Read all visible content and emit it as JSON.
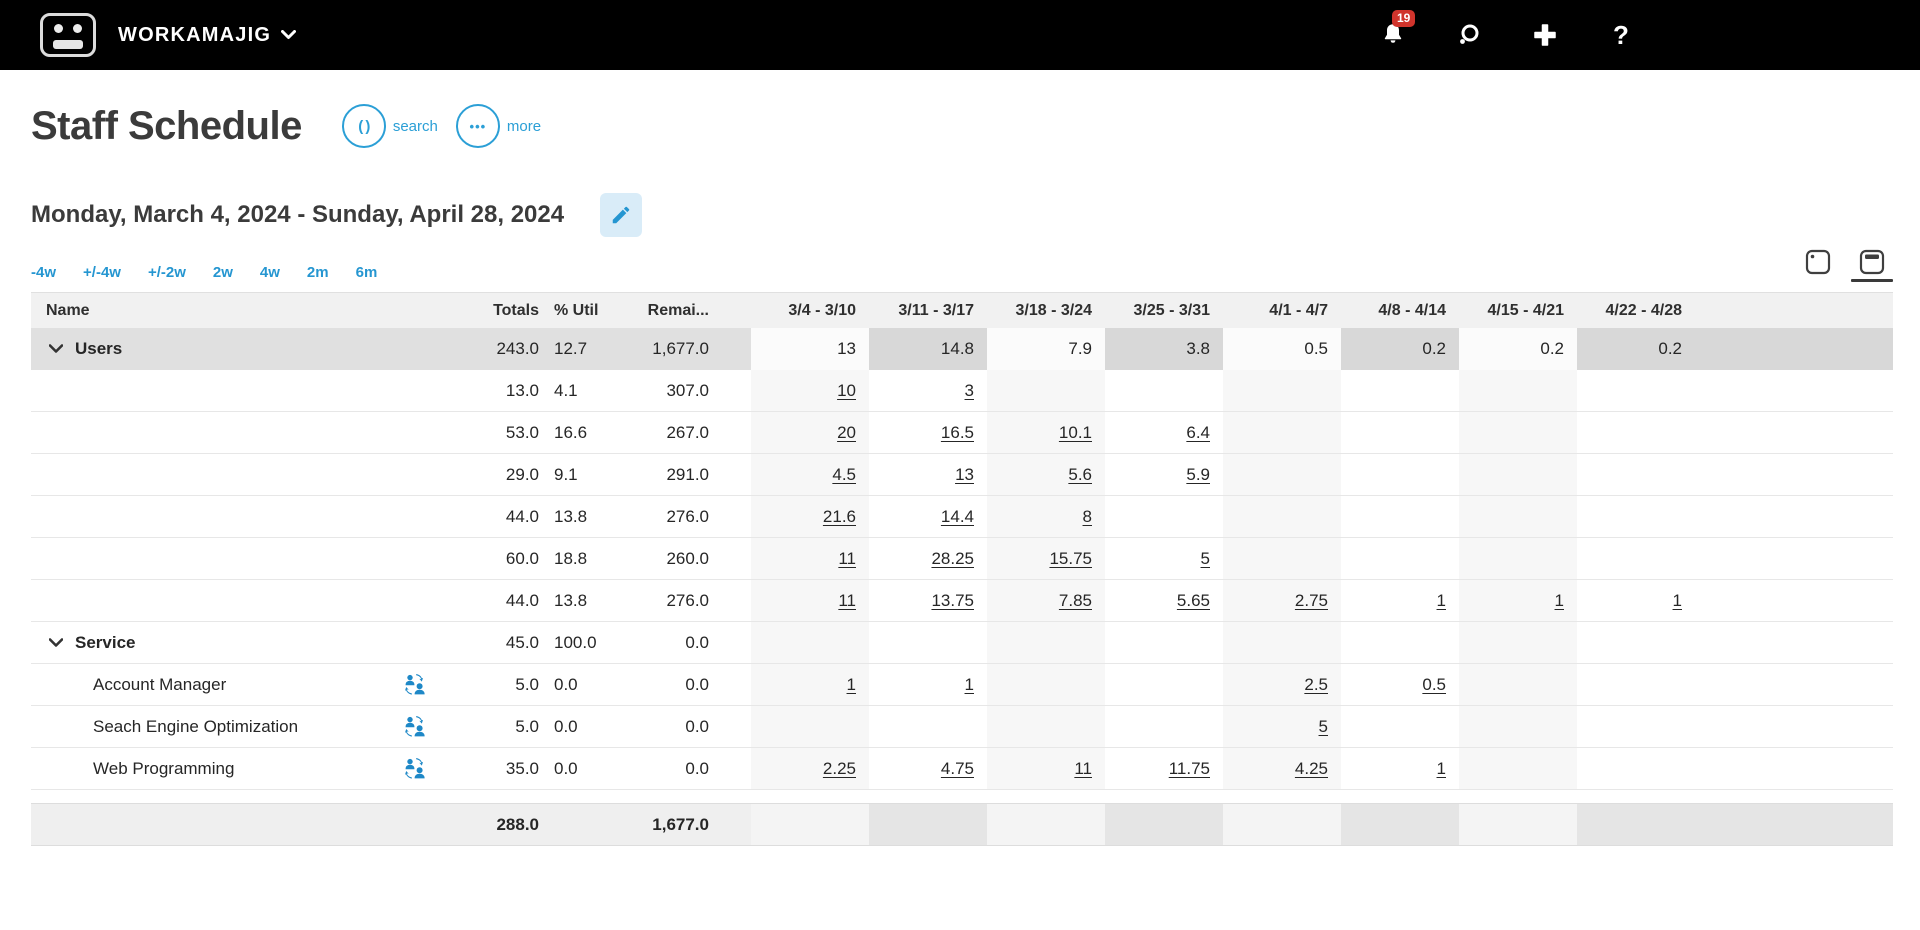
{
  "topbar": {
    "brand": "WORKAMAJIG",
    "notification_count": "19"
  },
  "page": {
    "title": "Staff Schedule",
    "search_label": "search",
    "more_label": "more",
    "date_range": "Monday, March 4, 2024 - Sunday, April 28, 2024",
    "range_links": [
      "-4w",
      "+/-4w",
      "+/-2w",
      "2w",
      "4w",
      "2m",
      "6m"
    ]
  },
  "icons": {
    "search_button_glyph": "( )",
    "more_button_glyph": "•••"
  },
  "table": {
    "columns": {
      "name": "Name",
      "totals": "Totals",
      "util": "% Util",
      "remaining": "Remai...",
      "weeks": [
        "3/4 - 3/10",
        "3/11 - 3/17",
        "3/18 - 3/24",
        "3/25 - 3/31",
        "4/1 - 4/7",
        "4/8 - 4/14",
        "4/15 - 4/21",
        "4/22 - 4/28"
      ]
    },
    "rows": [
      {
        "type": "group",
        "name": "Users",
        "icon": false,
        "totals": "243.0",
        "util": "12.7",
        "remaining": "1,677.0",
        "links": false,
        "weeks": [
          "13",
          "14.8",
          "7.9",
          "3.8",
          "0.5",
          "0.2",
          "0.2",
          "0.2"
        ]
      },
      {
        "type": "data",
        "name": "",
        "icon": false,
        "totals": "13.0",
        "util": "4.1",
        "remaining": "307.0",
        "links": true,
        "weeks": [
          "10",
          "3",
          "",
          "",
          "",
          "",
          "",
          ""
        ]
      },
      {
        "type": "data",
        "name": "",
        "icon": false,
        "totals": "53.0",
        "util": "16.6",
        "remaining": "267.0",
        "links": true,
        "weeks": [
          "20",
          "16.5",
          "10.1",
          "6.4",
          "",
          "",
          "",
          ""
        ]
      },
      {
        "type": "data",
        "name": "",
        "icon": false,
        "totals": "29.0",
        "util": "9.1",
        "remaining": "291.0",
        "links": true,
        "weeks": [
          "4.5",
          "13",
          "5.6",
          "5.9",
          "",
          "",
          "",
          ""
        ]
      },
      {
        "type": "data",
        "name": "",
        "icon": false,
        "totals": "44.0",
        "util": "13.8",
        "remaining": "276.0",
        "links": true,
        "weeks": [
          "21.6",
          "14.4",
          "8",
          "",
          "",
          "",
          "",
          ""
        ]
      },
      {
        "type": "data",
        "name": "",
        "icon": false,
        "totals": "60.0",
        "util": "18.8",
        "remaining": "260.0",
        "links": true,
        "weeks": [
          "11",
          "28.25",
          "15.75",
          "5",
          "",
          "",
          "",
          ""
        ]
      },
      {
        "type": "data",
        "name": "",
        "icon": false,
        "totals": "44.0",
        "util": "13.8",
        "remaining": "276.0",
        "links": true,
        "weeks": [
          "11",
          "13.75",
          "7.85",
          "5.65",
          "2.75",
          "1",
          "1",
          "1"
        ]
      },
      {
        "type": "glight",
        "name": "Service",
        "icon": false,
        "totals": "45.0",
        "util": "100.0",
        "remaining": "0.0",
        "links": false,
        "weeks": [
          "",
          "",
          "",
          "",
          "",
          "",
          "",
          ""
        ]
      },
      {
        "type": "data",
        "name": "Account Manager",
        "icon": true,
        "totals": "5.0",
        "util": "0.0",
        "remaining": "0.0",
        "links": true,
        "weeks": [
          "1",
          "1",
          "",
          "",
          "2.5",
          "0.5",
          "",
          ""
        ]
      },
      {
        "type": "data",
        "name": "Seach Engine Optimization",
        "icon": true,
        "totals": "5.0",
        "util": "0.0",
        "remaining": "0.0",
        "links": true,
        "weeks": [
          "",
          "",
          "",
          "",
          "5",
          "",
          "",
          ""
        ]
      },
      {
        "type": "data",
        "name": "Web Programming",
        "icon": true,
        "totals": "35.0",
        "util": "0.0",
        "remaining": "0.0",
        "links": true,
        "weeks": [
          "2.25",
          "4.75",
          "11",
          "11.75",
          "4.25",
          "1",
          "",
          ""
        ]
      }
    ],
    "totals_row": {
      "totals": "288.0",
      "remaining": "1,677.0"
    }
  },
  "colors": {
    "accent": "#2b9fd6",
    "link_blue": "#2596d1",
    "badge_red": "#d0342c",
    "topbar_bg": "#000000",
    "edit_btn_bg": "#d9ecf8",
    "header_row_bg": "#f1f1f1",
    "group_row_bg": "#e0e0e0",
    "totals_row_bg": "#efefef"
  }
}
